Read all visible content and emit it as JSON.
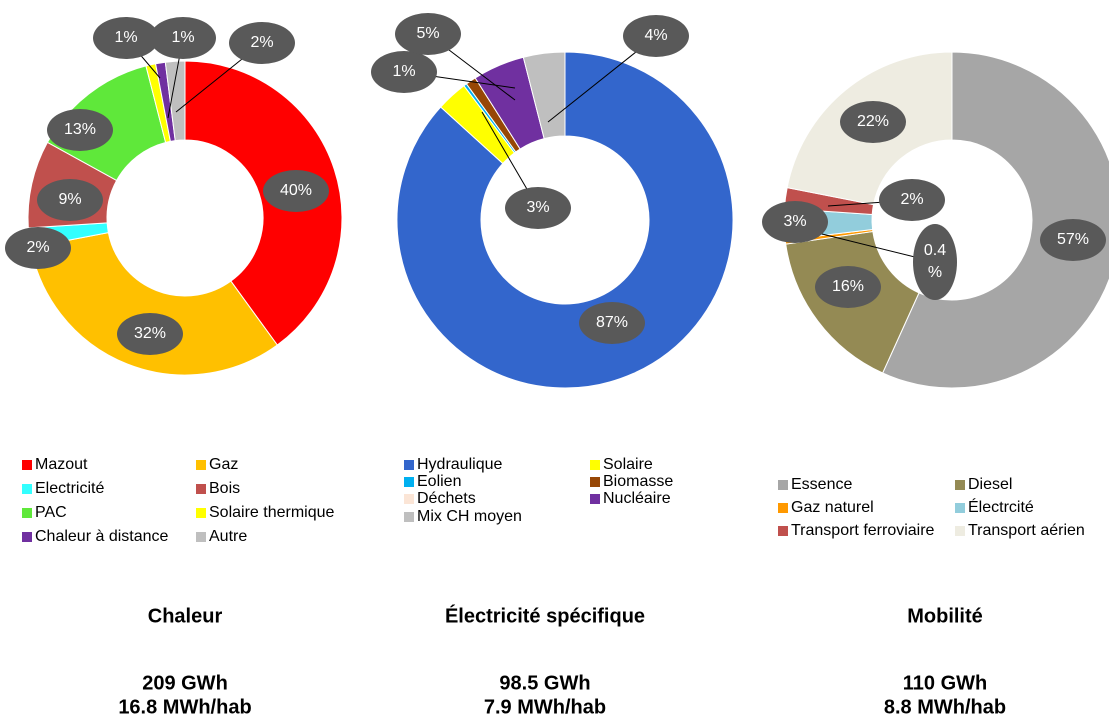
{
  "chart_data": [
    {
      "type": "pie",
      "title": "Chaleur",
      "totals": [
        "209 GWh",
        "16.8 MWh/hab"
      ],
      "categories": [
        "Mazout",
        "Gaz",
        "Electricité",
        "Bois",
        "PAC",
        "Solaire thermique",
        "Chaleur à distance",
        "Autre"
      ],
      "values": [
        40,
        32,
        2,
        9,
        13,
        1,
        1,
        2
      ],
      "value_labels": [
        "40%",
        "32%",
        "2%",
        "9%",
        "13%",
        "1%",
        "1%",
        "2%"
      ],
      "colors": [
        "#ff0000",
        "#ffc000",
        "#33ffff",
        "#c0504d",
        "#5fe83a",
        "#ffff00",
        "#7030a0",
        "#bfbfbf"
      ]
    },
    {
      "type": "pie",
      "title": "Électricité spécifique",
      "totals": [
        "98.5 GWh",
        "7.9 MWh/hab"
      ],
      "categories": [
        "Hydraulique",
        "Solaire",
        "Eolien",
        "Biomasse",
        "Déchets",
        "Nucléaire",
        "Mix CH moyen"
      ],
      "values": [
        87,
        3,
        0.3,
        1,
        0,
        5,
        4
      ],
      "value_labels": [
        "87%",
        "3%",
        null,
        "1%",
        null,
        "5%",
        "4%"
      ],
      "colors": [
        "#3366cc",
        "#ffff00",
        "#00b0f0",
        "#974706",
        "#fbe5d6",
        "#7030a0",
        "#bfbfbf"
      ]
    },
    {
      "type": "pie",
      "title": "Mobilité",
      "totals": [
        "110 GWh",
        "8.8 MWh/hab"
      ],
      "categories": [
        "Essence",
        "Diesel",
        "Gaz naturel",
        "Électrcité",
        "Transport ferroviaire",
        "Transport aérien"
      ],
      "values": [
        57,
        16,
        0.4,
        3,
        2,
        22
      ],
      "value_labels": [
        "57%",
        "16%",
        "0.4 %",
        "3%",
        "2%",
        "22%"
      ],
      "colors": [
        "#a6a6a6",
        "#948a54",
        "#ff9900",
        "#92cddc",
        "#c0504d",
        "#eeece1"
      ]
    }
  ]
}
